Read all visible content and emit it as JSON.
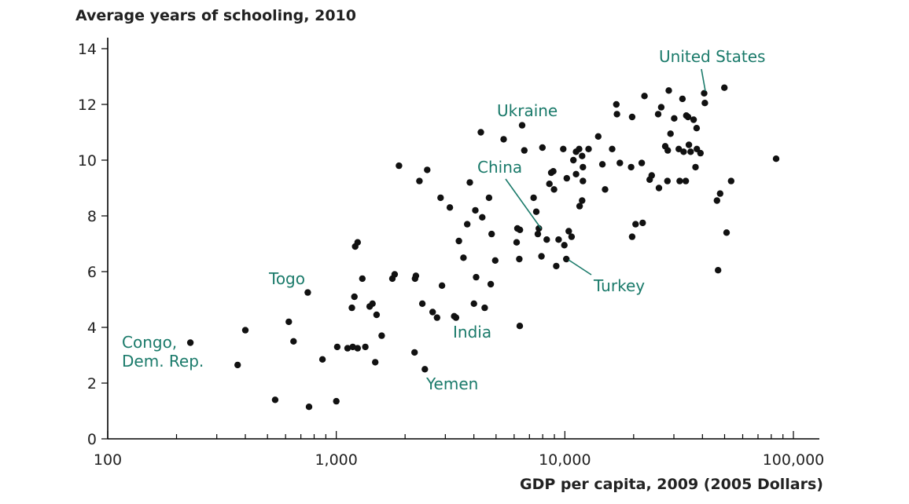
{
  "chart_data": {
    "type": "scatter",
    "title": "",
    "ylabel": "Average years of schooling, 2010",
    "xlabel": "GDP per capita, 2009 (2005 Dollars)",
    "xscale": "log",
    "xlim": [
      100,
      130000
    ],
    "ylim": [
      0,
      14.5
    ],
    "x_ticks": [
      100,
      1000,
      10000,
      100000
    ],
    "x_tick_labels": [
      "100",
      "1,000",
      "10,000",
      "100,000"
    ],
    "y_ticks": [
      0,
      2,
      4,
      6,
      8,
      10,
      12,
      14
    ],
    "y_tick_labels": [
      "0",
      "2",
      "4",
      "6",
      "8",
      "10",
      "12",
      "14"
    ],
    "grid": false,
    "points": [
      [
        230,
        3.45
      ],
      [
        370,
        2.65
      ],
      [
        400,
        3.9
      ],
      [
        540,
        1.4
      ],
      [
        620,
        4.2
      ],
      [
        650,
        3.5
      ],
      [
        750,
        5.25
      ],
      [
        760,
        1.15
      ],
      [
        870,
        2.85
      ],
      [
        1000,
        1.35
      ],
      [
        1010,
        3.3
      ],
      [
        1120,
        3.25
      ],
      [
        1170,
        4.7
      ],
      [
        1180,
        3.3
      ],
      [
        1200,
        5.1
      ],
      [
        1210,
        6.9
      ],
      [
        1240,
        7.05
      ],
      [
        1240,
        3.25
      ],
      [
        1300,
        5.75
      ],
      [
        1340,
        3.3
      ],
      [
        1400,
        4.75
      ],
      [
        1440,
        4.85
      ],
      [
        1480,
        2.75
      ],
      [
        1500,
        4.45
      ],
      [
        1580,
        3.7
      ],
      [
        1760,
        5.75
      ],
      [
        1800,
        5.9
      ],
      [
        1880,
        9.8
      ],
      [
        2200,
        3.1
      ],
      [
        2210,
        5.75
      ],
      [
        2230,
        5.85
      ],
      [
        2310,
        9.25
      ],
      [
        2380,
        4.85
      ],
      [
        2440,
        2.5
      ],
      [
        2500,
        9.65
      ],
      [
        2640,
        4.55
      ],
      [
        2760,
        4.35
      ],
      [
        2860,
        8.65
      ],
      [
        2900,
        5.5
      ],
      [
        3140,
        8.3
      ],
      [
        3280,
        4.4
      ],
      [
        3340,
        4.35
      ],
      [
        3440,
        7.1
      ],
      [
        3600,
        6.5
      ],
      [
        3740,
        7.7
      ],
      [
        3840,
        9.2
      ],
      [
        4000,
        4.85
      ],
      [
        4060,
        8.2
      ],
      [
        4090,
        5.8
      ],
      [
        4290,
        11.0
      ],
      [
        4350,
        7.95
      ],
      [
        4460,
        4.7
      ],
      [
        4660,
        8.65
      ],
      [
        4740,
        5.55
      ],
      [
        4780,
        7.35
      ],
      [
        4960,
        6.4
      ],
      [
        5400,
        10.75
      ],
      [
        6150,
        7.05
      ],
      [
        6200,
        7.55
      ],
      [
        6320,
        6.45
      ],
      [
        6360,
        7.5
      ],
      [
        6350,
        4.05
      ],
      [
        6500,
        11.25
      ],
      [
        6650,
        10.35
      ],
      [
        7300,
        8.65
      ],
      [
        7500,
        8.15
      ],
      [
        7620,
        7.35
      ],
      [
        7700,
        7.55
      ],
      [
        7900,
        6.55
      ],
      [
        7980,
        10.45
      ],
      [
        8330,
        7.15
      ],
      [
        8560,
        9.15
      ],
      [
        8720,
        9.55
      ],
      [
        8900,
        9.6
      ],
      [
        8970,
        8.95
      ],
      [
        9170,
        6.2
      ],
      [
        9390,
        7.15
      ],
      [
        9840,
        10.4
      ],
      [
        9950,
        6.95
      ],
      [
        10150,
        6.45
      ],
      [
        10200,
        9.35
      ],
      [
        10400,
        7.45
      ],
      [
        10700,
        7.25
      ],
      [
        10900,
        10.0
      ],
      [
        11200,
        9.5
      ],
      [
        11200,
        10.3
      ],
      [
        11550,
        10.4
      ],
      [
        11600,
        8.35
      ],
      [
        11900,
        8.55
      ],
      [
        11900,
        10.15
      ],
      [
        12000,
        9.25
      ],
      [
        12000,
        9.75
      ],
      [
        12700,
        10.4
      ],
      [
        14000,
        10.85
      ],
      [
        14600,
        9.85
      ],
      [
        15000,
        8.95
      ],
      [
        16100,
        10.4
      ],
      [
        16800,
        12.0
      ],
      [
        16900,
        11.65
      ],
      [
        17400,
        9.9
      ],
      [
        19500,
        9.75
      ],
      [
        19700,
        11.55
      ],
      [
        19700,
        7.25
      ],
      [
        20400,
        7.7
      ],
      [
        21700,
        9.9
      ],
      [
        21900,
        7.75
      ],
      [
        22300,
        12.3
      ],
      [
        23500,
        9.3
      ],
      [
        24000,
        9.45
      ],
      [
        25600,
        11.65
      ],
      [
        25800,
        9.0
      ],
      [
        26400,
        11.9
      ],
      [
        27500,
        10.5
      ],
      [
        28100,
        9.25
      ],
      [
        28200,
        10.35
      ],
      [
        28500,
        12.5
      ],
      [
        29000,
        10.95
      ],
      [
        30100,
        11.5
      ],
      [
        31500,
        10.4
      ],
      [
        31800,
        9.25
      ],
      [
        32700,
        12.2
      ],
      [
        33100,
        10.3
      ],
      [
        33800,
        9.25
      ],
      [
        34000,
        11.6
      ],
      [
        34600,
        11.55
      ],
      [
        34900,
        10.55
      ],
      [
        35500,
        10.3
      ],
      [
        36600,
        11.45
      ],
      [
        37300,
        9.75
      ],
      [
        37700,
        11.15
      ],
      [
        37800,
        10.4
      ],
      [
        39200,
        10.25
      ],
      [
        40700,
        12.4
      ],
      [
        41000,
        12.05
      ],
      [
        46300,
        8.55
      ],
      [
        46800,
        6.05
      ],
      [
        47800,
        8.8
      ],
      [
        49900,
        12.6
      ],
      [
        51000,
        7.4
      ],
      [
        53400,
        9.25
      ],
      [
        84000,
        10.05
      ]
    ],
    "annotations": [
      {
        "label": "Congo,",
        "x": 230,
        "y": 3.45
      },
      {
        "label": "Dem. Rep.",
        "x": 230,
        "y": 3.45
      },
      {
        "label": "Togo",
        "x": 750,
        "y": 5.25
      },
      {
        "label": "India",
        "x": 3300,
        "y": 4.4
      },
      {
        "label": "Yemen",
        "x": 2440,
        "y": 2.5
      },
      {
        "label": "Ukraine",
        "x": 6500,
        "y": 11.25
      },
      {
        "label": "China",
        "x": 7700,
        "y": 7.55
      },
      {
        "label": "Turkey",
        "x": 10150,
        "y": 6.45
      },
      {
        "label": "United States",
        "x": 40700,
        "y": 12.4
      }
    ]
  }
}
